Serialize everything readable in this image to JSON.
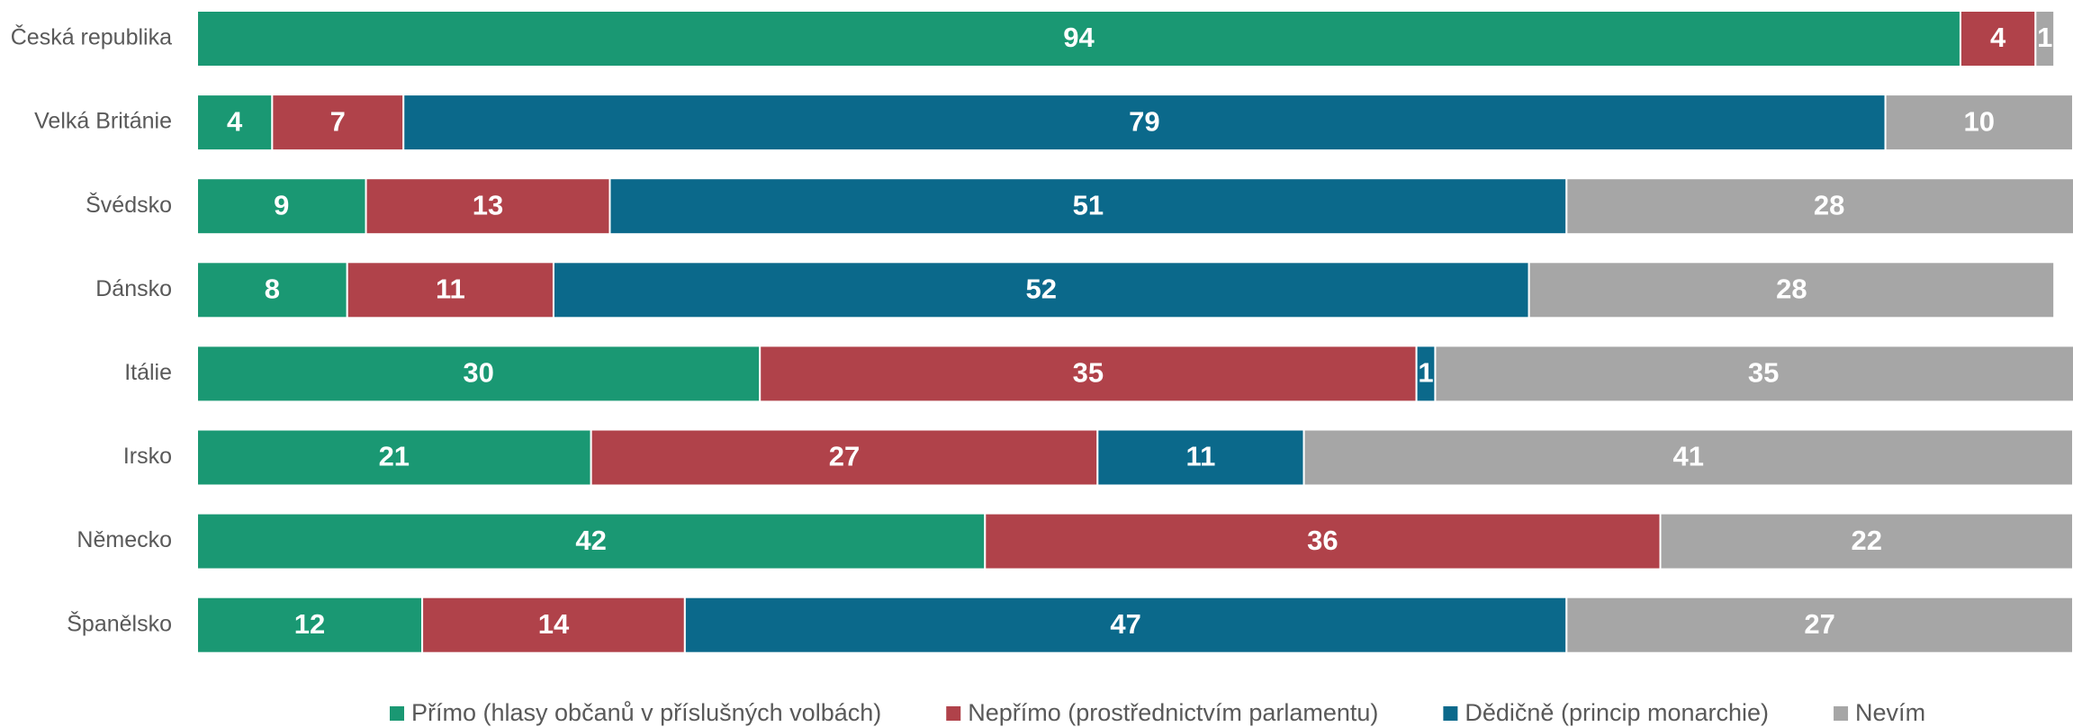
{
  "chart_data": {
    "type": "stacked_bar_horizontal",
    "categories": [
      "Česká republika",
      "Velká Británie",
      "Švédsko",
      "Dánsko",
      "Itálie",
      "Irsko",
      "Německo",
      "Španělsko"
    ],
    "series": [
      {
        "name": "Přímo (hlasy občanů v příslušných volbách)",
        "color": "#1a9873",
        "values": [
          94,
          4,
          9,
          8,
          30,
          21,
          42,
          12
        ]
      },
      {
        "name": "Nepřímo (prostřednictvím parlamentu)",
        "color": "#b0424a",
        "values": [
          4,
          7,
          13,
          11,
          35,
          27,
          36,
          14
        ]
      },
      {
        "name": "Dědičně (princip monarchie)",
        "color": "#0b698b",
        "values": [
          null,
          79,
          51,
          52,
          1,
          11,
          null,
          47
        ]
      },
      {
        "name": "Nevím",
        "color": "#a6a6a6",
        "values": [
          1,
          10,
          28,
          28,
          35,
          41,
          22,
          27
        ]
      }
    ],
    "xlim": [
      0,
      100
    ],
    "legend": "bottom"
  }
}
